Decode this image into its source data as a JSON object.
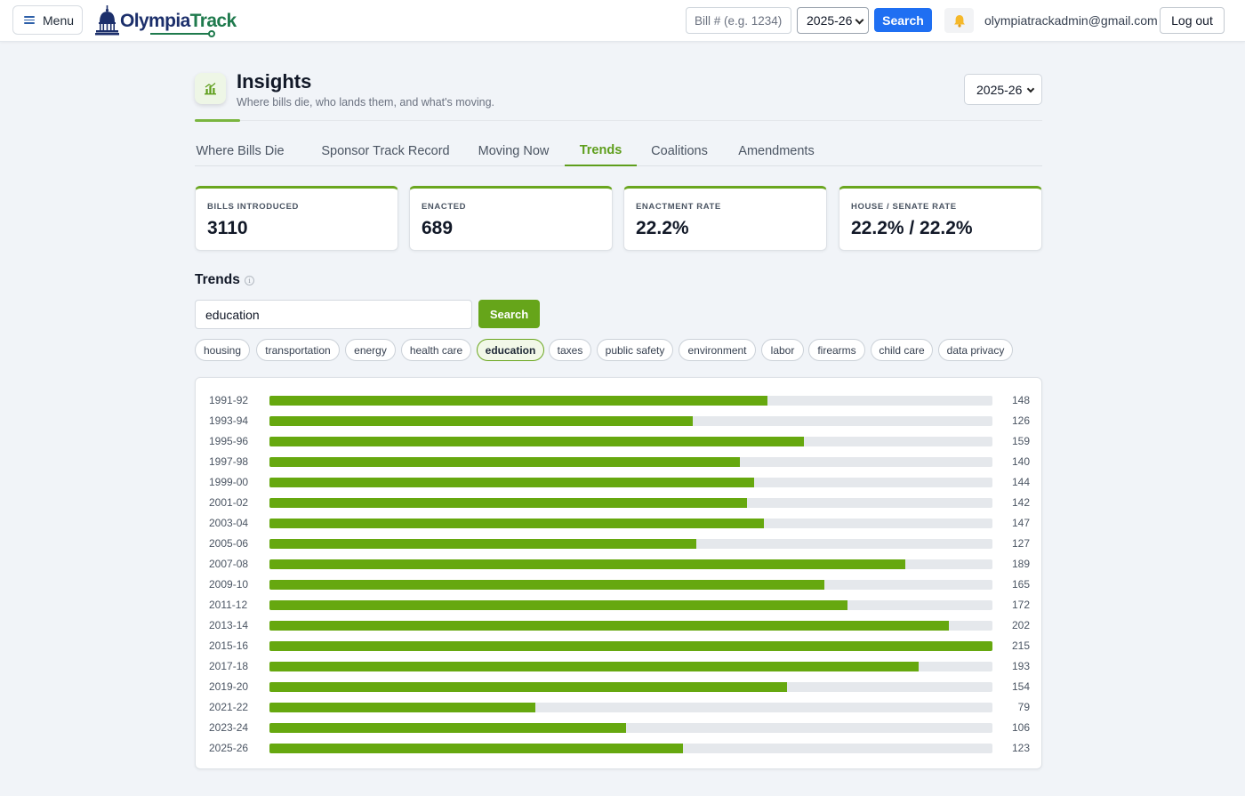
{
  "topbar": {
    "menu_label": "Menu",
    "logo": {
      "part1": "Olympia",
      "part2": "Track"
    },
    "bill_placeholder": "Bill # (e.g. 1234)",
    "session": "2025-26",
    "search_label": "Search",
    "user_email": "olympiatrackadmin@gmail.com",
    "logout_label": "Log out"
  },
  "header": {
    "title": "Insights",
    "subtitle": "Where bills die, who lands them, and what's moving.",
    "session": "2025-26"
  },
  "tabs": [
    {
      "label": "Where Bills Die"
    },
    {
      "label": "Sponsor Track Record"
    },
    {
      "label": "Moving Now"
    },
    {
      "label": "Trends",
      "active": true
    },
    {
      "label": "Coalitions"
    },
    {
      "label": "Amendments"
    }
  ],
  "stats": [
    {
      "label": "BILLS INTRODUCED",
      "value": "3110"
    },
    {
      "label": "ENACTED",
      "value": "689"
    },
    {
      "label": "ENACTMENT RATE",
      "value": "22.2%"
    },
    {
      "label": "HOUSE / SENATE RATE",
      "value": "22.2% / 22.2%"
    }
  ],
  "trends": {
    "heading": "Trends",
    "info_glyph": "i",
    "query": "education",
    "search_label": "Search",
    "topics": [
      {
        "label": "housing"
      },
      {
        "label": "transportation"
      },
      {
        "label": "energy"
      },
      {
        "label": "health care"
      },
      {
        "label": "education",
        "active": true
      },
      {
        "label": "taxes"
      },
      {
        "label": "public safety"
      },
      {
        "label": "environment"
      },
      {
        "label": "labor"
      },
      {
        "label": "firearms"
      },
      {
        "label": "child care"
      },
      {
        "label": "data privacy"
      }
    ]
  },
  "colors": {
    "accent": "#66a80f",
    "primary": "#1f6ff2",
    "track": "#e5e8ec"
  },
  "chart_data": {
    "type": "bar",
    "orientation": "horizontal",
    "categories": [
      "1991-92",
      "1993-94",
      "1995-96",
      "1997-98",
      "1999-00",
      "2001-02",
      "2003-04",
      "2005-06",
      "2007-08",
      "2009-10",
      "2011-12",
      "2013-14",
      "2015-16",
      "2017-18",
      "2019-20",
      "2021-22",
      "2023-24",
      "2025-26"
    ],
    "values": [
      148,
      126,
      159,
      140,
      144,
      142,
      147,
      127,
      189,
      165,
      172,
      202,
      215,
      193,
      154,
      79,
      106,
      123
    ],
    "xlim": [
      0,
      215
    ]
  }
}
